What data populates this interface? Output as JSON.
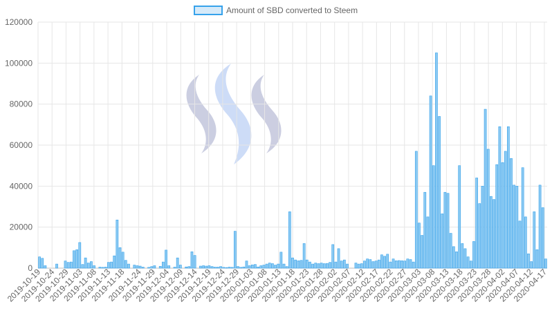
{
  "chart_data": {
    "type": "bar",
    "legend": {
      "label": "Amount of SBD converted to Steem",
      "position": "top",
      "color_fill": "#d6eaf9",
      "color_stroke": "#36a2eb"
    },
    "bar_color_fill": "#8ccaf2",
    "bar_color_stroke": "#36a2eb",
    "grid": true,
    "ylim": [
      0,
      120000
    ],
    "yticks": [
      0,
      20000,
      40000,
      60000,
      80000,
      100000,
      120000
    ],
    "ytick_labels": [
      "0",
      "20000",
      "40000",
      "60000",
      "80000",
      "100000",
      "120000"
    ],
    "x_start": "2019-10-19",
    "x_end": "2020-04-18",
    "xtick_labels": [
      "2019-10-19",
      "2019-10-24",
      "2019-10-29",
      "2019-11-03",
      "2019-11-08",
      "2019-11-13",
      "2019-11-18",
      "2019-11-24",
      "2019-11-29",
      "2019-12-04",
      "2019-12-09",
      "2019-12-14",
      "2019-12-19",
      "2019-12-24",
      "2019-12-29",
      "2020-01-03",
      "2020-01-08",
      "2020-01-13",
      "2020-01-18",
      "2020-01-23",
      "2020-01-28",
      "2020-02-02",
      "2020-02-07",
      "2020-02-12",
      "2020-02-17",
      "2020-02-22",
      "2020-02-27",
      "2020-03-03",
      "2020-03-08",
      "2020-03-13",
      "2020-03-18",
      "2020-03-23",
      "2020-03-28",
      "2020-04-02",
      "2020-04-07",
      "2020-04-12",
      "2020-04-17"
    ],
    "values": [
      5500,
      4800,
      1200,
      0,
      0,
      0,
      2000,
      0,
      0,
      3500,
      2800,
      3000,
      8500,
      9000,
      12500,
      1800,
      5000,
      2500,
      3200,
      1200,
      0,
      500,
      400,
      500,
      2800,
      3000,
      6000,
      23500,
      10000,
      7800,
      3800,
      2000,
      0,
      1500,
      1200,
      1000,
      500,
      0,
      400,
      800,
      1200,
      0,
      900,
      3000,
      8800,
      1200,
      0,
      500,
      5000,
      1500,
      0,
      600,
      800,
      8000,
      6200,
      0,
      1000,
      1200,
      1000,
      1200,
      800,
      500,
      500,
      800,
      400,
      300,
      500,
      400,
      18000,
      800,
      400,
      600,
      3500,
      1200,
      1600,
      1800,
      600,
      1200,
      1500,
      2000,
      2500,
      2200,
      1500,
      2000,
      7800,
      2000,
      800,
      27500,
      5000,
      4000,
      3600,
      3800,
      12000,
      4000,
      3000,
      2000,
      2500,
      2200,
      2500,
      2200,
      2300,
      2800,
      11500,
      3000,
      9500,
      3500,
      4000,
      2000,
      0,
      0,
      2500,
      2000,
      2200,
      3500,
      4500,
      4200,
      3200,
      3500,
      4000,
      6500,
      5800,
      6800,
      3000,
      4500,
      3600,
      3700,
      3600,
      3500,
      4500,
      4200,
      3000,
      57000,
      22000,
      16000,
      37000,
      25000,
      84000,
      50000,
      105000,
      74000,
      26500,
      37000,
      36500,
      17000,
      10500,
      8000,
      50000,
      12000,
      9500,
      5500,
      3500,
      13000,
      44000,
      31500,
      40000,
      77500,
      58000,
      35000,
      33500,
      50500,
      69000,
      51500,
      57000,
      69000,
      53500,
      40500,
      40000,
      23000,
      49000,
      25000,
      7000,
      3200,
      27500,
      9000,
      40500,
      29500,
      4500
    ]
  }
}
